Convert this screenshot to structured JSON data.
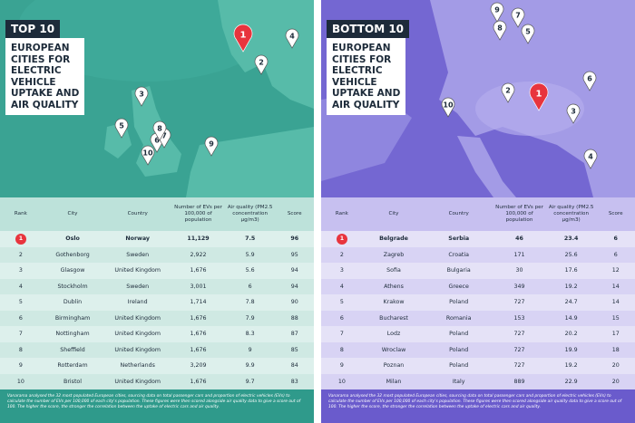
{
  "panels": [
    {
      "badge": "TOP 10",
      "title_lines": [
        "EUROPEAN",
        "CITIES FOR",
        "ELECTRIC",
        "VEHICLE",
        "UPTAKE AND",
        "AIR QUALITY"
      ],
      "pins": [
        1,
        2,
        3,
        4,
        5,
        6,
        7,
        8,
        9,
        10
      ],
      "table": {
        "headers": [
          "Rank",
          "City",
          "Country",
          "Number of EVs per 100,000 of population",
          "Air quality (PM2.5 concentration µg/m3)",
          "Score"
        ],
        "rows": [
          [
            "1",
            "Oslo",
            "Norway",
            "11,129",
            "7.5",
            "96"
          ],
          [
            "2",
            "Gothenborg",
            "Sweden",
            "2,922",
            "5.9",
            "95"
          ],
          [
            "3",
            "Glasgow",
            "United Kingdom",
            "1,676",
            "5.6",
            "94"
          ],
          [
            "4",
            "Stockholm",
            "Sweden",
            "3,001",
            "6",
            "94"
          ],
          [
            "5",
            "Dublin",
            "Ireland",
            "1,714",
            "7.8",
            "90"
          ],
          [
            "6",
            "Birmingham",
            "United Kingdom",
            "1,676",
            "7.9",
            "88"
          ],
          [
            "7",
            "Nottingham",
            "United Kingdom",
            "1,676",
            "8.3",
            "87"
          ],
          [
            "8",
            "Sheffield",
            "United Kingdom",
            "1,676",
            "9",
            "85"
          ],
          [
            "9",
            "Rotterdam",
            "Netherlands",
            "3,209",
            "9.9",
            "84"
          ],
          [
            "10",
            "Bristol",
            "United Kingdom",
            "1,676",
            "9.7",
            "83"
          ]
        ]
      },
      "footnote": "Vanarama analysed the 32 most populated European cities, sourcing data on total passenger cars and proportion of electric vehicles (EVs) to calculate the number of EVs per 100,000 of each city's population. These figures were then scored alongside air quality data to give a score out of 100. The higher the score, the stronger the correlation between the uptake of electric cars and air quality."
    },
    {
      "badge": "BOTTOM 10",
      "title_lines": [
        "EUROPEAN",
        "CITIES FOR",
        "ELECTRIC",
        "VEHICLE",
        "UPTAKE AND",
        "AIR QUALITY"
      ],
      "pins": [
        1,
        2,
        3,
        4,
        5,
        6,
        7,
        8,
        9,
        10
      ],
      "table": {
        "headers": [
          "Rank",
          "City",
          "Country",
          "Number of EVs per 100,000 of population",
          "Air quality (PM2.5 concentration µg/m3)",
          "Score"
        ],
        "rows": [
          [
            "1",
            "Belgrade",
            "Serbia",
            "46",
            "23.4",
            "6"
          ],
          [
            "2",
            "Zagreb",
            "Croatia",
            "171",
            "25.6",
            "6"
          ],
          [
            "3",
            "Sofia",
            "Bulgaria",
            "30",
            "17.6",
            "12"
          ],
          [
            "4",
            "Athens",
            "Greece",
            "349",
            "19.2",
            "14"
          ],
          [
            "5",
            "Krakow",
            "Poland",
            "727",
            "24.7",
            "14"
          ],
          [
            "6",
            "Bucharest",
            "Romania",
            "153",
            "14.9",
            "15"
          ],
          [
            "7",
            "Lodz",
            "Poland",
            "727",
            "20.2",
            "17"
          ],
          [
            "8",
            "Wroclaw",
            "Poland",
            "727",
            "19.9",
            "18"
          ],
          [
            "9",
            "Poznan",
            "Poland",
            "727",
            "19.2",
            "20"
          ],
          [
            "10",
            "Milan",
            "Italy",
            "889",
            "22.9",
            "20"
          ]
        ]
      },
      "footnote": "Vanarama analysed the 32 most populated European cities, sourcing data on total passenger cars and proportion of electric vehicles (EVs) to calculate the number of EVs per 100,000 of each city's population. These figures were then scored alongside air quality data to give a score out of 100. The higher the score, the stronger the correlation between the uptake of electric cars and air quality."
    }
  ]
}
